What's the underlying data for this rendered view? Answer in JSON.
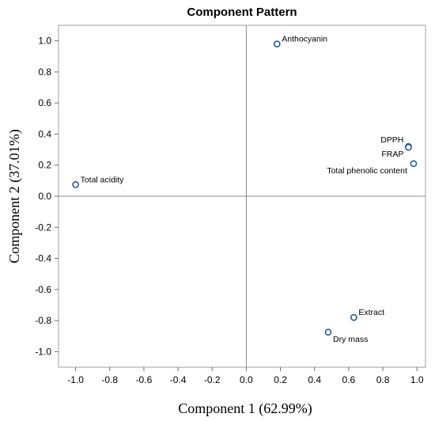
{
  "chart_data": {
    "type": "scatter",
    "title": "Component Pattern",
    "xlabel": "Component 1 (62.99%)",
    "ylabel": "Component 2 (37.01%)",
    "xlim": [
      -1.1,
      1.05
    ],
    "ylim": [
      -1.1,
      1.1
    ],
    "xticks": [
      "-1.0",
      "-0.8",
      "-0.6",
      "-0.4",
      "-0.2",
      "0.0",
      "0.2",
      "0.4",
      "0.6",
      "0.8",
      "1.0"
    ],
    "yticks": [
      "-1.0",
      "-0.8",
      "-0.6",
      "-0.4",
      "-0.2",
      "0.0",
      "0.2",
      "0.4",
      "0.6",
      "0.8",
      "1.0"
    ],
    "grid": false,
    "reference_lines": {
      "x": 0,
      "y": 0
    },
    "marker_color": "#2b5a9c",
    "points": [
      {
        "label": "Anthocyanin",
        "x": 0.18,
        "y": 0.98
      },
      {
        "label": "DPPH",
        "x": 0.95,
        "y": 0.32
      },
      {
        "label": "FRAP",
        "x": 0.95,
        "y": 0.315
      },
      {
        "label": "Total phenolic content",
        "x": 0.98,
        "y": 0.21
      },
      {
        "label": "Total acidity",
        "x": -1.0,
        "y": 0.075
      },
      {
        "label": "Extract",
        "x": 0.63,
        "y": -0.78
      },
      {
        "label": "Dry mass",
        "x": 0.48,
        "y": -0.875
      }
    ]
  }
}
